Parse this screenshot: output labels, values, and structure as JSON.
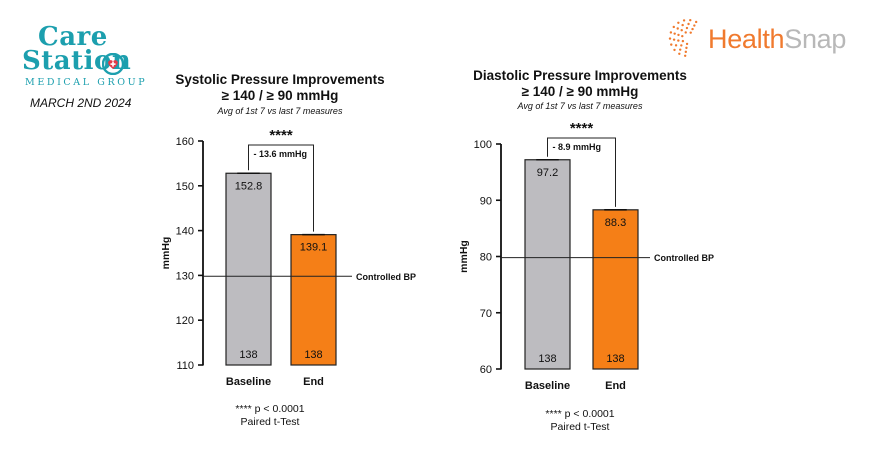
{
  "brand_left": {
    "line1": "Care",
    "line2": "Station",
    "line3": "MEDICAL GROUP",
    "date": "MARCH 2ND 2024",
    "color": "#1c9fae",
    "heart_color": "#e53a48"
  },
  "brand_right": {
    "name_part1": "Health",
    "name_part2": "Snap",
    "icon": "orbit-dots-icon",
    "accent": "#f07a2e",
    "secondary": "#b8b8b8"
  },
  "chart_data": [
    {
      "type": "bar",
      "title": "Systolic Pressure Improvements",
      "subtitle": "≥ 140 / ≥ 90 mmHg",
      "note": "Avg of 1st 7 vs last 7 measures",
      "ylabel": "mmHg",
      "ylim": [
        110,
        160
      ],
      "yticks": [
        110,
        120,
        130,
        140,
        150,
        160
      ],
      "categories": [
        "Baseline",
        "End"
      ],
      "values": [
        152.8,
        139.1
      ],
      "value_labels": [
        "152.8",
        "139.1"
      ],
      "n_labels": [
        "138",
        "138"
      ],
      "colors": [
        "#bdbcc0",
        "#f57f17"
      ],
      "reference_line": {
        "value": 129.8,
        "label": "Controlled BP"
      },
      "difference_label": "- 13.6 mmHg",
      "significance": "****",
      "footnote_line1": "**** p < 0.0001",
      "footnote_line2": "Paired t-Test"
    },
    {
      "type": "bar",
      "title": "Diastolic Pressure Improvements",
      "subtitle": "≥ 140 / ≥ 90 mmHg",
      "note": "Avg of 1st 7 vs last 7 measures",
      "ylabel": "mmHg",
      "ylim": [
        60,
        100
      ],
      "yticks": [
        60,
        70,
        80,
        90,
        100
      ],
      "categories": [
        "Baseline",
        "End"
      ],
      "values": [
        97.2,
        88.3
      ],
      "value_labels": [
        "97.2",
        "88.3"
      ],
      "n_labels": [
        "138",
        "138"
      ],
      "colors": [
        "#bdbcc0",
        "#f57f17"
      ],
      "reference_line": {
        "value": 79.8,
        "label": "Controlled BP"
      },
      "difference_label": "- 8.9 mmHg",
      "significance": "****",
      "footnote_line1": "**** p < 0.0001",
      "footnote_line2": "Paired t-Test"
    }
  ]
}
